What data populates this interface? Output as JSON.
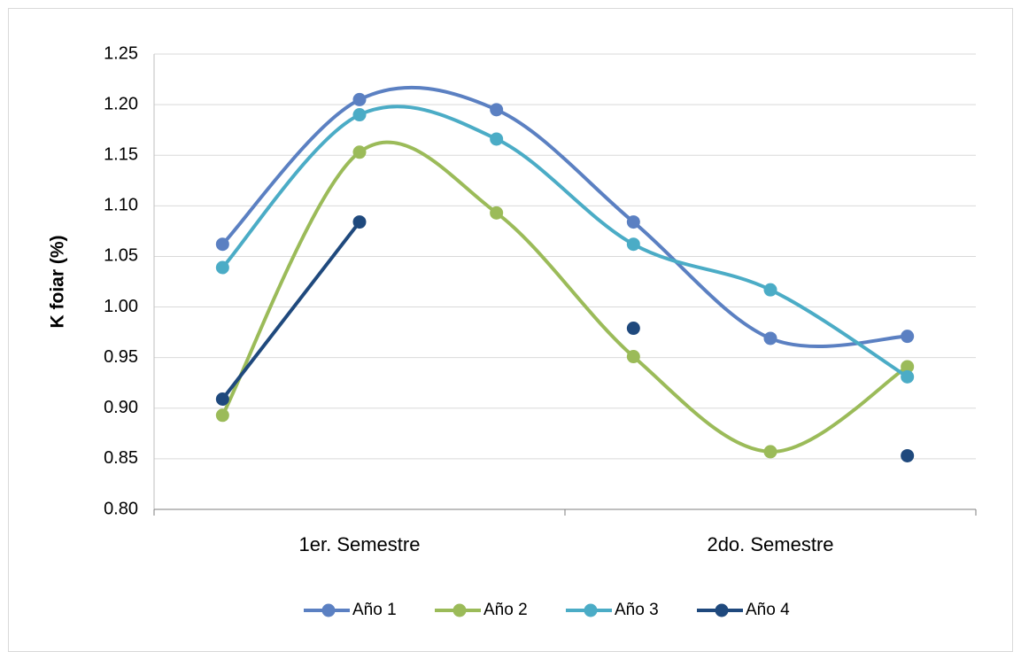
{
  "chart_data": {
    "type": "line",
    "y_label": "K foiar (%)",
    "group_labels": [
      "1er. Semestre",
      "2do. Semestre"
    ],
    "categories": [
      null,
      null,
      null,
      null,
      null,
      null
    ],
    "series": [
      {
        "name": "Año 1",
        "color": "#5b80c2",
        "values": [
          1.062,
          1.205,
          1.195,
          1.084,
          0.969,
          0.971
        ],
        "smooth": true
      },
      {
        "name": "Año 2",
        "color": "#9bbb59",
        "values": [
          0.893,
          1.153,
          1.093,
          0.951,
          0.857,
          0.941
        ],
        "smooth": true
      },
      {
        "name": "Año 3",
        "color": "#4bacc6",
        "values": [
          1.039,
          1.19,
          1.166,
          1.062,
          1.017,
          0.931
        ],
        "smooth": true
      },
      {
        "name": "Año 4",
        "color": "#1f497d",
        "values": [
          0.909,
          1.084,
          null,
          0.979,
          null,
          0.853
        ],
        "smooth": true
      }
    ],
    "ylim": [
      0.8,
      1.25
    ],
    "yticks": [
      {
        "value": 0.8,
        "label": "0.80"
      },
      0.85,
      {
        "value": 0.9,
        "label": "0.90"
      },
      0.95,
      {
        "value": 1.0,
        "label": "1.00"
      },
      1.05,
      {
        "value": 1.1,
        "label": "1.10"
      },
      1.15,
      {
        "value": 1.2,
        "label": "1.20"
      },
      1.25
    ],
    "grid": true,
    "legend": "bottom"
  }
}
